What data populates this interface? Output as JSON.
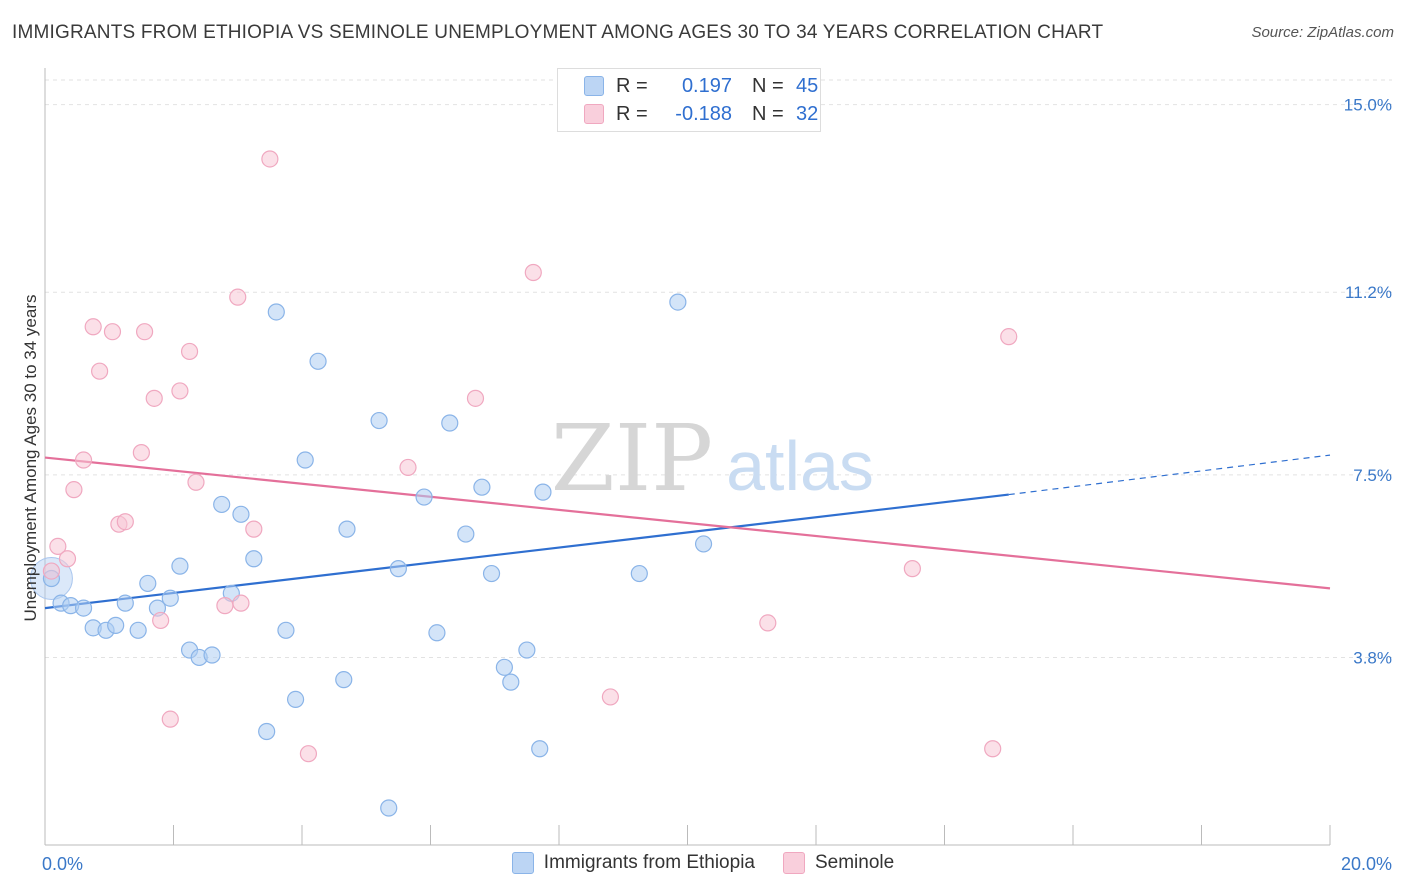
{
  "title": "IMMIGRANTS FROM ETHIOPIA VS SEMINOLE UNEMPLOYMENT AMONG AGES 30 TO 34 YEARS CORRELATION CHART",
  "source": "Source: ZipAtlas.com",
  "watermark": {
    "zip": "ZIP",
    "atlas": "atlas"
  },
  "legend": {
    "r_label": "R =",
    "n_label": "N =",
    "series1": {
      "r": "0.197",
      "n": "45"
    },
    "series2": {
      "r": "-0.188",
      "n": "32"
    }
  },
  "chart_data": {
    "type": "scatter",
    "title": "IMMIGRANTS FROM ETHIOPIA VS SEMINOLE UNEMPLOYMENT AMONG AGES 30 TO 34 YEARS CORRELATION CHART",
    "xlabel": "",
    "ylabel": "Unemployment Among Ages 30 to 34 years",
    "xlim": [
      0,
      20
    ],
    "ylim": [
      0,
      15.5
    ],
    "x_tick_labels": [
      "0.0%",
      "20.0%"
    ],
    "y_ticks": [
      3.8,
      7.5,
      11.2,
      15.0
    ],
    "y_tick_labels": [
      "3.8%",
      "7.5%",
      "11.2%",
      "15.0%"
    ],
    "grid": "horizontal dashed",
    "legend_placement": "bottom-center",
    "colors": {
      "series1": "#8ab4e8",
      "series2": "#f0a8c0",
      "trend1": "#2f6fd0",
      "trend2": "#e4709a",
      "tick_labels": "#3a78c8"
    },
    "series": [
      {
        "name": "Immigrants from Ethiopia",
        "r": 0.197,
        "n": 45,
        "trend": {
          "x0": 0,
          "y0": 4.8,
          "x1": 15,
          "y1": 7.1,
          "dashed_to": {
            "x": 20,
            "y": 7.9
          }
        },
        "points": [
          [
            0.1,
            5.4
          ],
          [
            0.25,
            4.9
          ],
          [
            0.4,
            4.85
          ],
          [
            0.6,
            4.8
          ],
          [
            0.75,
            4.4
          ],
          [
            0.95,
            4.35
          ],
          [
            1.1,
            4.45
          ],
          [
            1.25,
            4.9
          ],
          [
            1.45,
            4.35
          ],
          [
            1.6,
            5.3
          ],
          [
            1.75,
            4.8
          ],
          [
            1.95,
            5.0
          ],
          [
            2.1,
            5.65
          ],
          [
            2.25,
            3.95
          ],
          [
            2.4,
            3.8
          ],
          [
            2.6,
            3.85
          ],
          [
            2.75,
            6.9
          ],
          [
            2.9,
            5.1
          ],
          [
            3.05,
            6.7
          ],
          [
            3.25,
            5.8
          ],
          [
            3.45,
            2.3
          ],
          [
            3.6,
            10.8
          ],
          [
            3.75,
            4.35
          ],
          [
            3.9,
            2.95
          ],
          [
            4.05,
            7.8
          ],
          [
            4.25,
            9.8
          ],
          [
            4.65,
            3.35
          ],
          [
            4.7,
            6.4
          ],
          [
            5.2,
            8.6
          ],
          [
            5.35,
            0.75
          ],
          [
            5.5,
            5.6
          ],
          [
            5.9,
            7.05
          ],
          [
            6.1,
            4.3
          ],
          [
            6.3,
            8.55
          ],
          [
            6.55,
            6.3
          ],
          [
            6.8,
            7.25
          ],
          [
            6.95,
            5.5
          ],
          [
            7.15,
            3.6
          ],
          [
            7.25,
            3.3
          ],
          [
            7.5,
            3.95
          ],
          [
            7.7,
            1.95
          ],
          [
            7.75,
            7.15
          ],
          [
            9.25,
            5.5
          ],
          [
            9.85,
            11.0
          ],
          [
            10.25,
            6.1
          ]
        ]
      },
      {
        "name": "Seminole",
        "r": -0.188,
        "n": 32,
        "trend": {
          "x0": 0,
          "y0": 7.85,
          "x1": 20,
          "y1": 5.2
        },
        "points": [
          [
            0.1,
            5.55
          ],
          [
            0.2,
            6.05
          ],
          [
            0.35,
            5.8
          ],
          [
            0.45,
            7.2
          ],
          [
            0.6,
            7.8
          ],
          [
            0.75,
            10.5
          ],
          [
            0.85,
            9.6
          ],
          [
            1.05,
            10.4
          ],
          [
            1.15,
            6.5
          ],
          [
            1.25,
            6.55
          ],
          [
            1.5,
            7.95
          ],
          [
            1.55,
            10.4
          ],
          [
            1.7,
            9.05
          ],
          [
            1.8,
            4.55
          ],
          [
            1.95,
            2.55
          ],
          [
            2.1,
            9.2
          ],
          [
            2.25,
            10.0
          ],
          [
            2.35,
            7.35
          ],
          [
            2.8,
            4.85
          ],
          [
            3.0,
            11.1
          ],
          [
            3.05,
            4.9
          ],
          [
            3.25,
            6.4
          ],
          [
            3.5,
            13.9
          ],
          [
            4.1,
            1.85
          ],
          [
            5.65,
            7.65
          ],
          [
            6.7,
            9.05
          ],
          [
            7.6,
            11.6
          ],
          [
            8.8,
            3.0
          ],
          [
            11.25,
            4.5
          ],
          [
            13.5,
            5.6
          ],
          [
            14.75,
            1.95
          ],
          [
            15.0,
            10.3
          ]
        ]
      }
    ]
  }
}
